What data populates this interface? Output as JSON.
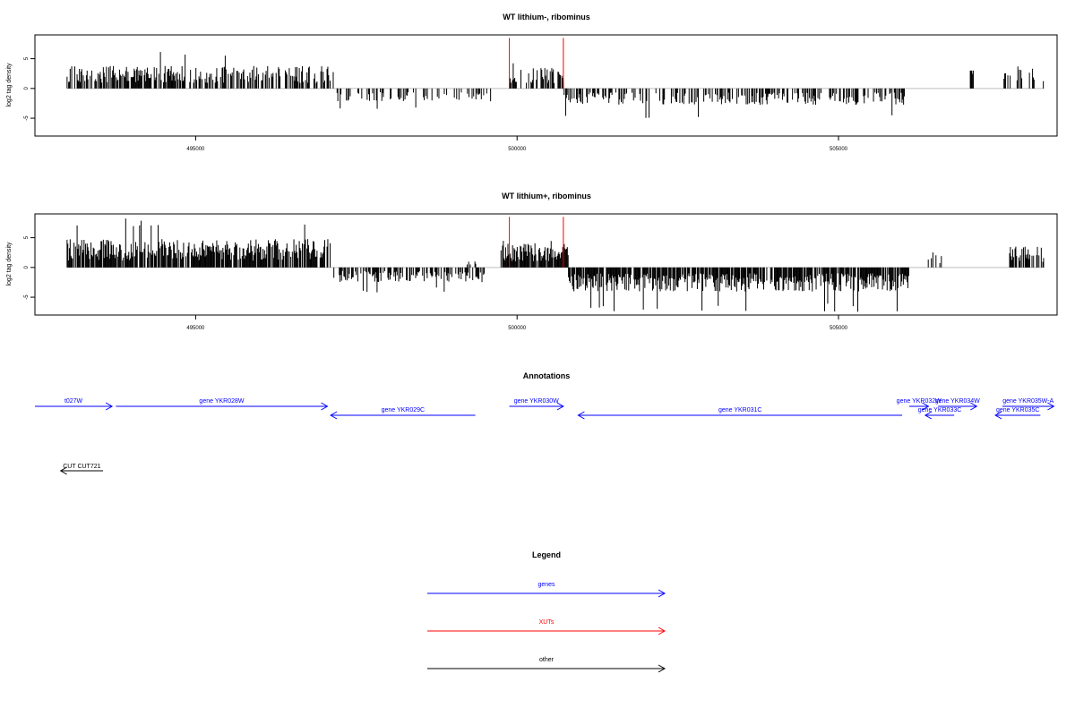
{
  "chart_data": [
    {
      "type": "bar",
      "title": "WT lithium-, ribominus",
      "ylabel": "log2 tag density",
      "xlim": [
        492500,
        508400
      ],
      "ylim": [
        -8,
        9
      ],
      "x_ticks": [
        495000,
        500000,
        505000
      ],
      "y_ticks": [
        -5,
        0,
        5
      ],
      "xut_marks": [
        499880,
        500720
      ],
      "segments": [
        {
          "start": 493000,
          "end": 497150,
          "sign": 1,
          "mean": 2.6,
          "max": 6.3,
          "density": 0.62
        },
        {
          "start": 497200,
          "end": 499600,
          "sign": -1,
          "mean": 1.5,
          "max": 3.8,
          "density": 0.28
        },
        {
          "start": 499880,
          "end": 500720,
          "sign": 1,
          "mean": 2.4,
          "max": 4.6,
          "density": 0.55
        },
        {
          "start": 500720,
          "end": 506050,
          "sign": -1,
          "mean": 1.9,
          "max": 5.0,
          "density": 0.45
        },
        {
          "start": 507050,
          "end": 507100,
          "sign": 1,
          "mean": 3.0,
          "max": 3.0,
          "density": 1.0
        },
        {
          "start": 507550,
          "end": 508200,
          "sign": 1,
          "mean": 2.3,
          "max": 3.8,
          "density": 0.3
        }
      ]
    },
    {
      "type": "bar",
      "title": "WT lithium+, ribominus",
      "ylabel": "log2 tag density",
      "xlim": [
        492500,
        508400
      ],
      "ylim": [
        -8,
        9
      ],
      "x_ticks": [
        495000,
        500000,
        505000
      ],
      "y_ticks": [
        -5,
        0,
        5
      ],
      "xut_marks": [
        499880,
        500720
      ],
      "segments": [
        {
          "start": 493000,
          "end": 497100,
          "sign": 1,
          "mean": 3.3,
          "max": 8.3,
          "density": 0.85
        },
        {
          "start": 497150,
          "end": 499500,
          "sign": -1,
          "mean": 1.7,
          "max": 4.2,
          "density": 0.55
        },
        {
          "start": 499200,
          "end": 499400,
          "sign": 1,
          "mean": 0.8,
          "max": 1.5,
          "density": 0.3
        },
        {
          "start": 499750,
          "end": 500800,
          "sign": 1,
          "mean": 2.8,
          "max": 5.2,
          "density": 0.9
        },
        {
          "start": 500800,
          "end": 506100,
          "sign": -1,
          "mean": 2.8,
          "max": 7.5,
          "density": 0.85
        },
        {
          "start": 506300,
          "end": 506600,
          "sign": 1,
          "mean": 1.8,
          "max": 2.7,
          "density": 0.25
        },
        {
          "start": 507650,
          "end": 508200,
          "sign": 1,
          "mean": 2.5,
          "max": 4.2,
          "density": 0.55
        }
      ]
    }
  ],
  "annotations": {
    "title": "Annotations",
    "genes": [
      {
        "label": "t027W",
        "start": 492500,
        "end": 493700,
        "strand": "+",
        "row": 0
      },
      {
        "label": "gene YKR028W",
        "start": 493760,
        "end": 497050,
        "strand": "+",
        "row": 0
      },
      {
        "label": "gene YKR029C",
        "start": 497100,
        "end": 499350,
        "strand": "-",
        "row": 1
      },
      {
        "label": "gene YKR030W",
        "start": 499880,
        "end": 500720,
        "strand": "+",
        "row": 0
      },
      {
        "label": "gene YKR031C",
        "start": 500950,
        "end": 505990,
        "strand": "-",
        "row": 1
      },
      {
        "label": "gene YKR032W",
        "start": 506100,
        "end": 506400,
        "strand": "+",
        "row": 0
      },
      {
        "label": "gene YKR034W",
        "start": 506550,
        "end": 507150,
        "strand": "+",
        "row": 0
      },
      {
        "label": "gene YKR033C",
        "start": 506350,
        "end": 506800,
        "strand": "-",
        "row": 1
      },
      {
        "label": "gene YKR035W-A",
        "start": 507550,
        "end": 508350,
        "strand": "+",
        "row": 0
      },
      {
        "label": "gene YKR035C",
        "start": 507440,
        "end": 508140,
        "strand": "-",
        "row": 1
      }
    ],
    "other": [
      {
        "label": "CUT CUT721",
        "start": 492900,
        "end": 493560,
        "strand": "-"
      }
    ]
  },
  "legend": {
    "title": "Legend",
    "items": [
      {
        "label": "genes",
        "color": "#0000ff"
      },
      {
        "label": "XUTs",
        "color": "#ff0000"
      },
      {
        "label": "other",
        "color": "#000000"
      }
    ]
  },
  "colors": {
    "genes": "#0000ff",
    "xuts": "#ff0000",
    "other": "#000000",
    "signal": "#000000",
    "axis": "#000000",
    "baseline": "#bebebe"
  }
}
